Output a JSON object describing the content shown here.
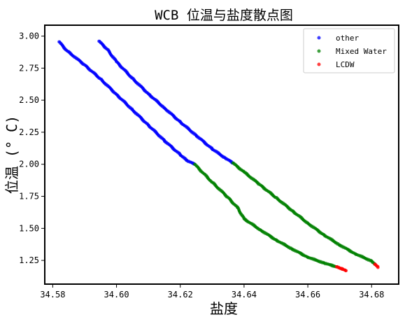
{
  "chart_data": {
    "type": "scatter",
    "title": "WCB 位温与盐度散点图",
    "xlabel": "盐度",
    "ylabel": "位温 (° C)",
    "xlim": [
      34.5775,
      34.6885
    ],
    "ylim": [
      1.065,
      3.085
    ],
    "x_ticks": [
      34.58,
      34.6,
      34.62,
      34.64,
      34.66,
      34.68
    ],
    "x_tick_labels": [
      "34.58",
      "34.60",
      "34.62",
      "34.64",
      "34.66",
      "34.68"
    ],
    "y_ticks": [
      1.25,
      1.5,
      1.75,
      2.0,
      2.25,
      2.5,
      2.75,
      3.0
    ],
    "y_tick_labels": [
      "1.25",
      "1.50",
      "1.75",
      "2.00",
      "2.25",
      "2.50",
      "2.75",
      "3.00"
    ],
    "grid": false,
    "legend_position": "top-right",
    "series": [
      {
        "name": "other",
        "color": "#0000ff",
        "segments": [
          {
            "x": [
              34.582,
              34.5845,
              34.59,
              34.595,
              34.6,
              34.605,
              34.61,
              34.615,
              34.62,
              34.622,
              34.6245
            ],
            "y": [
              2.955,
              2.885,
              2.775,
              2.665,
              2.545,
              2.425,
              2.305,
              2.185,
              2.075,
              2.03,
              2.0
            ]
          },
          {
            "x": [
              34.5945,
              34.597,
              34.6,
              34.605,
              34.61,
              34.615,
              34.62,
              34.625,
              34.63,
              34.634,
              34.6365
            ],
            "y": [
              2.96,
              2.9,
              2.8,
              2.67,
              2.55,
              2.44,
              2.33,
              2.225,
              2.12,
              2.05,
              2.01
            ]
          }
        ]
      },
      {
        "name": "Mixed Water",
        "color": "#008000",
        "segments": [
          {
            "x": [
              34.6245,
              34.63,
              34.635,
              34.638,
              34.64,
              34.645,
              34.65,
              34.655,
              34.66,
              34.665,
              34.669
            ],
            "y": [
              2.0,
              1.86,
              1.74,
              1.66,
              1.575,
              1.49,
              1.41,
              1.34,
              1.275,
              1.23,
              1.2
            ]
          },
          {
            "x": [
              34.6365,
              34.64,
              34.645,
              34.65,
              34.655,
              34.66,
              34.665,
              34.67,
              34.675,
              34.68,
              34.681
            ],
            "y": [
              2.01,
              1.94,
              1.84,
              1.74,
              1.64,
              1.54,
              1.45,
              1.37,
              1.3,
              1.245,
              1.22
            ]
          }
        ]
      },
      {
        "name": "LCDW",
        "color": "#ff0000",
        "segments": [
          {
            "x": [
              34.669,
              34.67,
              34.671,
              34.672
            ],
            "y": [
              1.2,
              1.19,
              1.18,
              1.17
            ]
          },
          {
            "x": [
              34.681,
              34.6815,
              34.682
            ],
            "y": [
              1.22,
              1.21,
              1.195
            ]
          }
        ]
      }
    ]
  }
}
